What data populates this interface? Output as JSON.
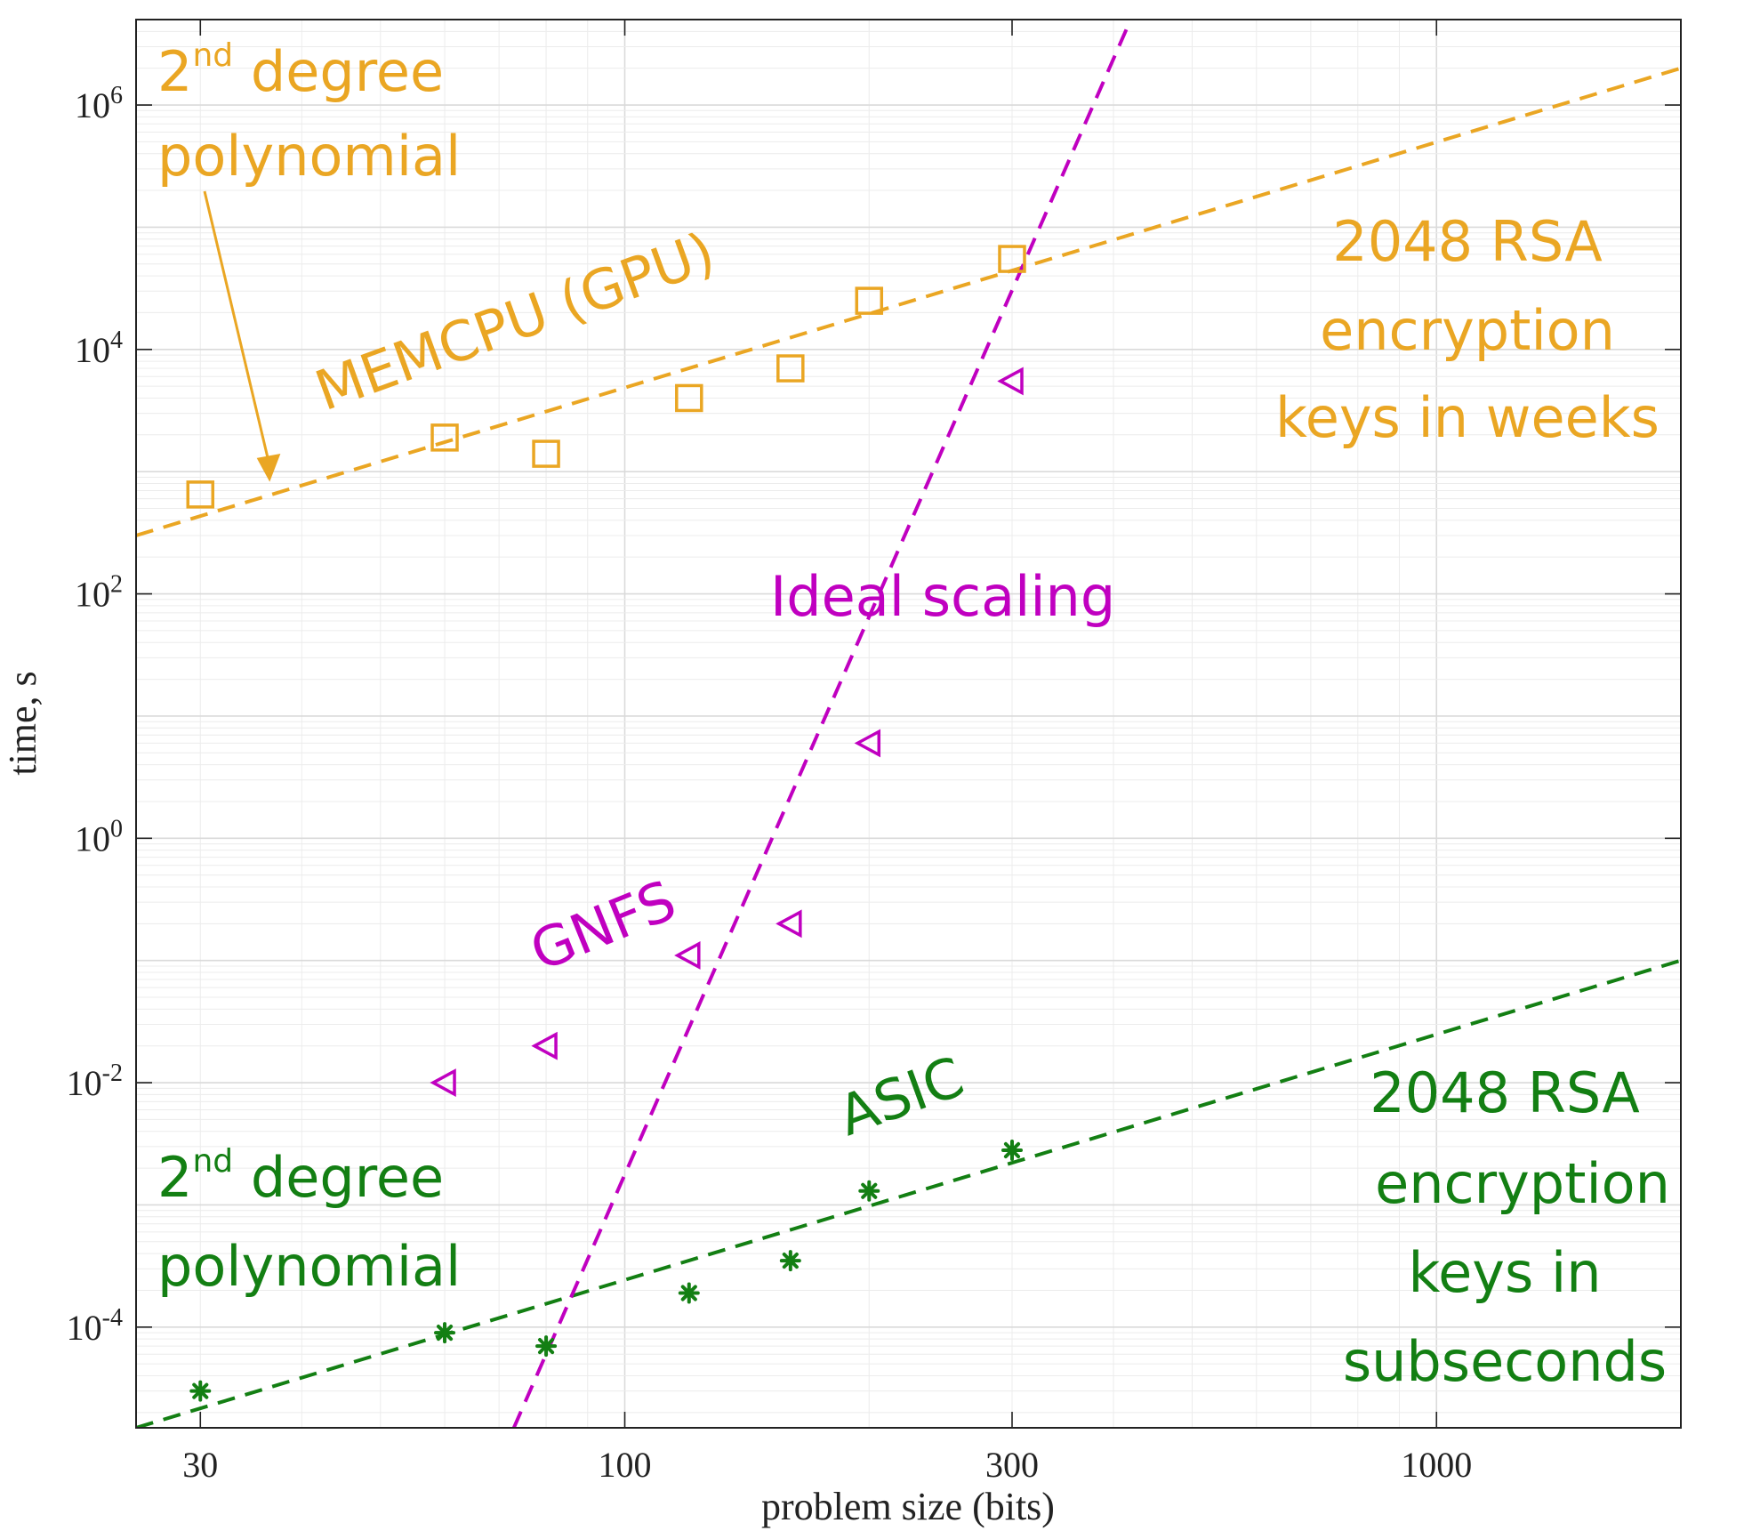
{
  "chart_data": {
    "type": "scatter",
    "xscale": "log",
    "yscale": "log",
    "xlim": [
      25,
      2000
    ],
    "ylim": [
      1.5e-05,
      5000000
    ],
    "xlabel": "problem size (bits)",
    "ylabel": "time, s",
    "grid": true,
    "x_ticks": [
      {
        "value": 30,
        "label": "30"
      },
      {
        "value": 100,
        "label": "100"
      },
      {
        "value": 300,
        "label": "300"
      },
      {
        "value": 1000,
        "label": "1000"
      }
    ],
    "y_ticks": [
      {
        "value": 0.0001,
        "base": "10",
        "exp": "-4"
      },
      {
        "value": 0.01,
        "base": "10",
        "exp": "-2"
      },
      {
        "value": 1,
        "base": "10",
        "exp": "0"
      },
      {
        "value": 100,
        "base": "10",
        "exp": "2"
      },
      {
        "value": 10000,
        "base": "10",
        "exp": "4"
      },
      {
        "value": 1000000,
        "base": "10",
        "exp": "6"
      }
    ],
    "series": [
      {
        "name": "MEMCPU (GPU)",
        "marker": "square",
        "color": "#EAA623",
        "points": [
          [
            30,
            650
          ],
          [
            60,
            1900
          ],
          [
            80,
            1400
          ],
          [
            120,
            4000
          ],
          [
            160,
            7000
          ],
          [
            200,
            25000
          ],
          [
            300,
            55000
          ]
        ]
      },
      {
        "name": "GNFS",
        "marker": "triangle-left",
        "color": "#C000C0",
        "points": [
          [
            60,
            0.01
          ],
          [
            80,
            0.02
          ],
          [
            120,
            0.11
          ],
          [
            160,
            0.2
          ],
          [
            200,
            6
          ],
          [
            300,
            5500
          ]
        ]
      },
      {
        "name": "ASIC",
        "marker": "asterisk",
        "color": "#137F13",
        "points": [
          [
            30,
            3e-05
          ],
          [
            60,
            9e-05
          ],
          [
            80,
            7e-05
          ],
          [
            120,
            0.00019
          ],
          [
            160,
            0.00035
          ],
          [
            200,
            0.0013
          ],
          [
            300,
            0.0028
          ]
        ]
      }
    ],
    "fit_lines": [
      {
        "name": "MEMCPU 2nd degree polynomial fit",
        "color": "#EAA623",
        "points": [
          [
            25,
            300
          ],
          [
            2000,
            2000000
          ]
        ]
      },
      {
        "name": "ASIC 2nd degree polynomial fit",
        "color": "#137F13",
        "points": [
          [
            25,
            1.5e-05
          ],
          [
            2000,
            0.1
          ]
        ]
      },
      {
        "name": "Ideal scaling",
        "color": "#C000C0",
        "points": [
          [
            73,
            1.5e-05
          ],
          [
            420,
            5000000
          ]
        ]
      }
    ],
    "annotations": {
      "gpu_poly_sup": "nd",
      "gpu_poly_line1": "2",
      "gpu_poly_line1_rest": " degree",
      "gpu_poly_line2": "polynomial",
      "memcpu_label": "MEMCPU (GPU)",
      "rsa_gpu_line1": "2048 RSA",
      "rsa_gpu_line2": "encryption",
      "rsa_gpu_line3": "keys in weeks",
      "ideal_label": "Ideal scaling",
      "gnfs_label": "GNFS",
      "asic_label": "ASIC",
      "asic_poly_line1": "2",
      "asic_poly_sup": "nd",
      "asic_poly_line1_rest": " degree",
      "asic_poly_line2": "polynomial",
      "rsa_asic_line1": "2048 RSA",
      "rsa_asic_line2": "encryption",
      "rsa_asic_line3": "keys in",
      "rsa_asic_line4": "subseconds"
    },
    "colors": {
      "gpu": "#EAA623",
      "gnfs": "#C000C0",
      "asic": "#137F13",
      "axis": "#222222",
      "grid": "#e3e3e3"
    }
  }
}
